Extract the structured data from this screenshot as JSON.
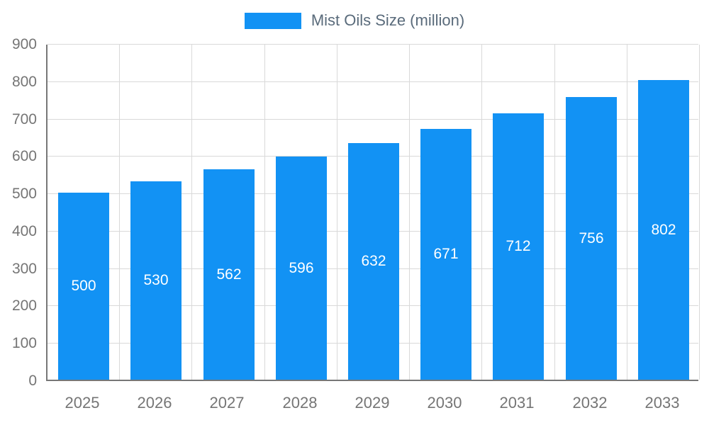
{
  "chart_data": {
    "type": "bar",
    "title": "Mist Oils Size (million)",
    "categories": [
      "2025",
      "2026",
      "2027",
      "2028",
      "2029",
      "2030",
      "2031",
      "2032",
      "2033"
    ],
    "values": [
      500,
      530,
      562,
      596,
      632,
      671,
      712,
      756,
      802
    ],
    "xlabel": "",
    "ylabel": "",
    "ylim": [
      0,
      900
    ],
    "ytick_step": 100,
    "grid": true,
    "legend_position": "top",
    "bar_color": "#1292f4",
    "value_label_color": "#ffffff",
    "tick_label_color": "#757575"
  }
}
